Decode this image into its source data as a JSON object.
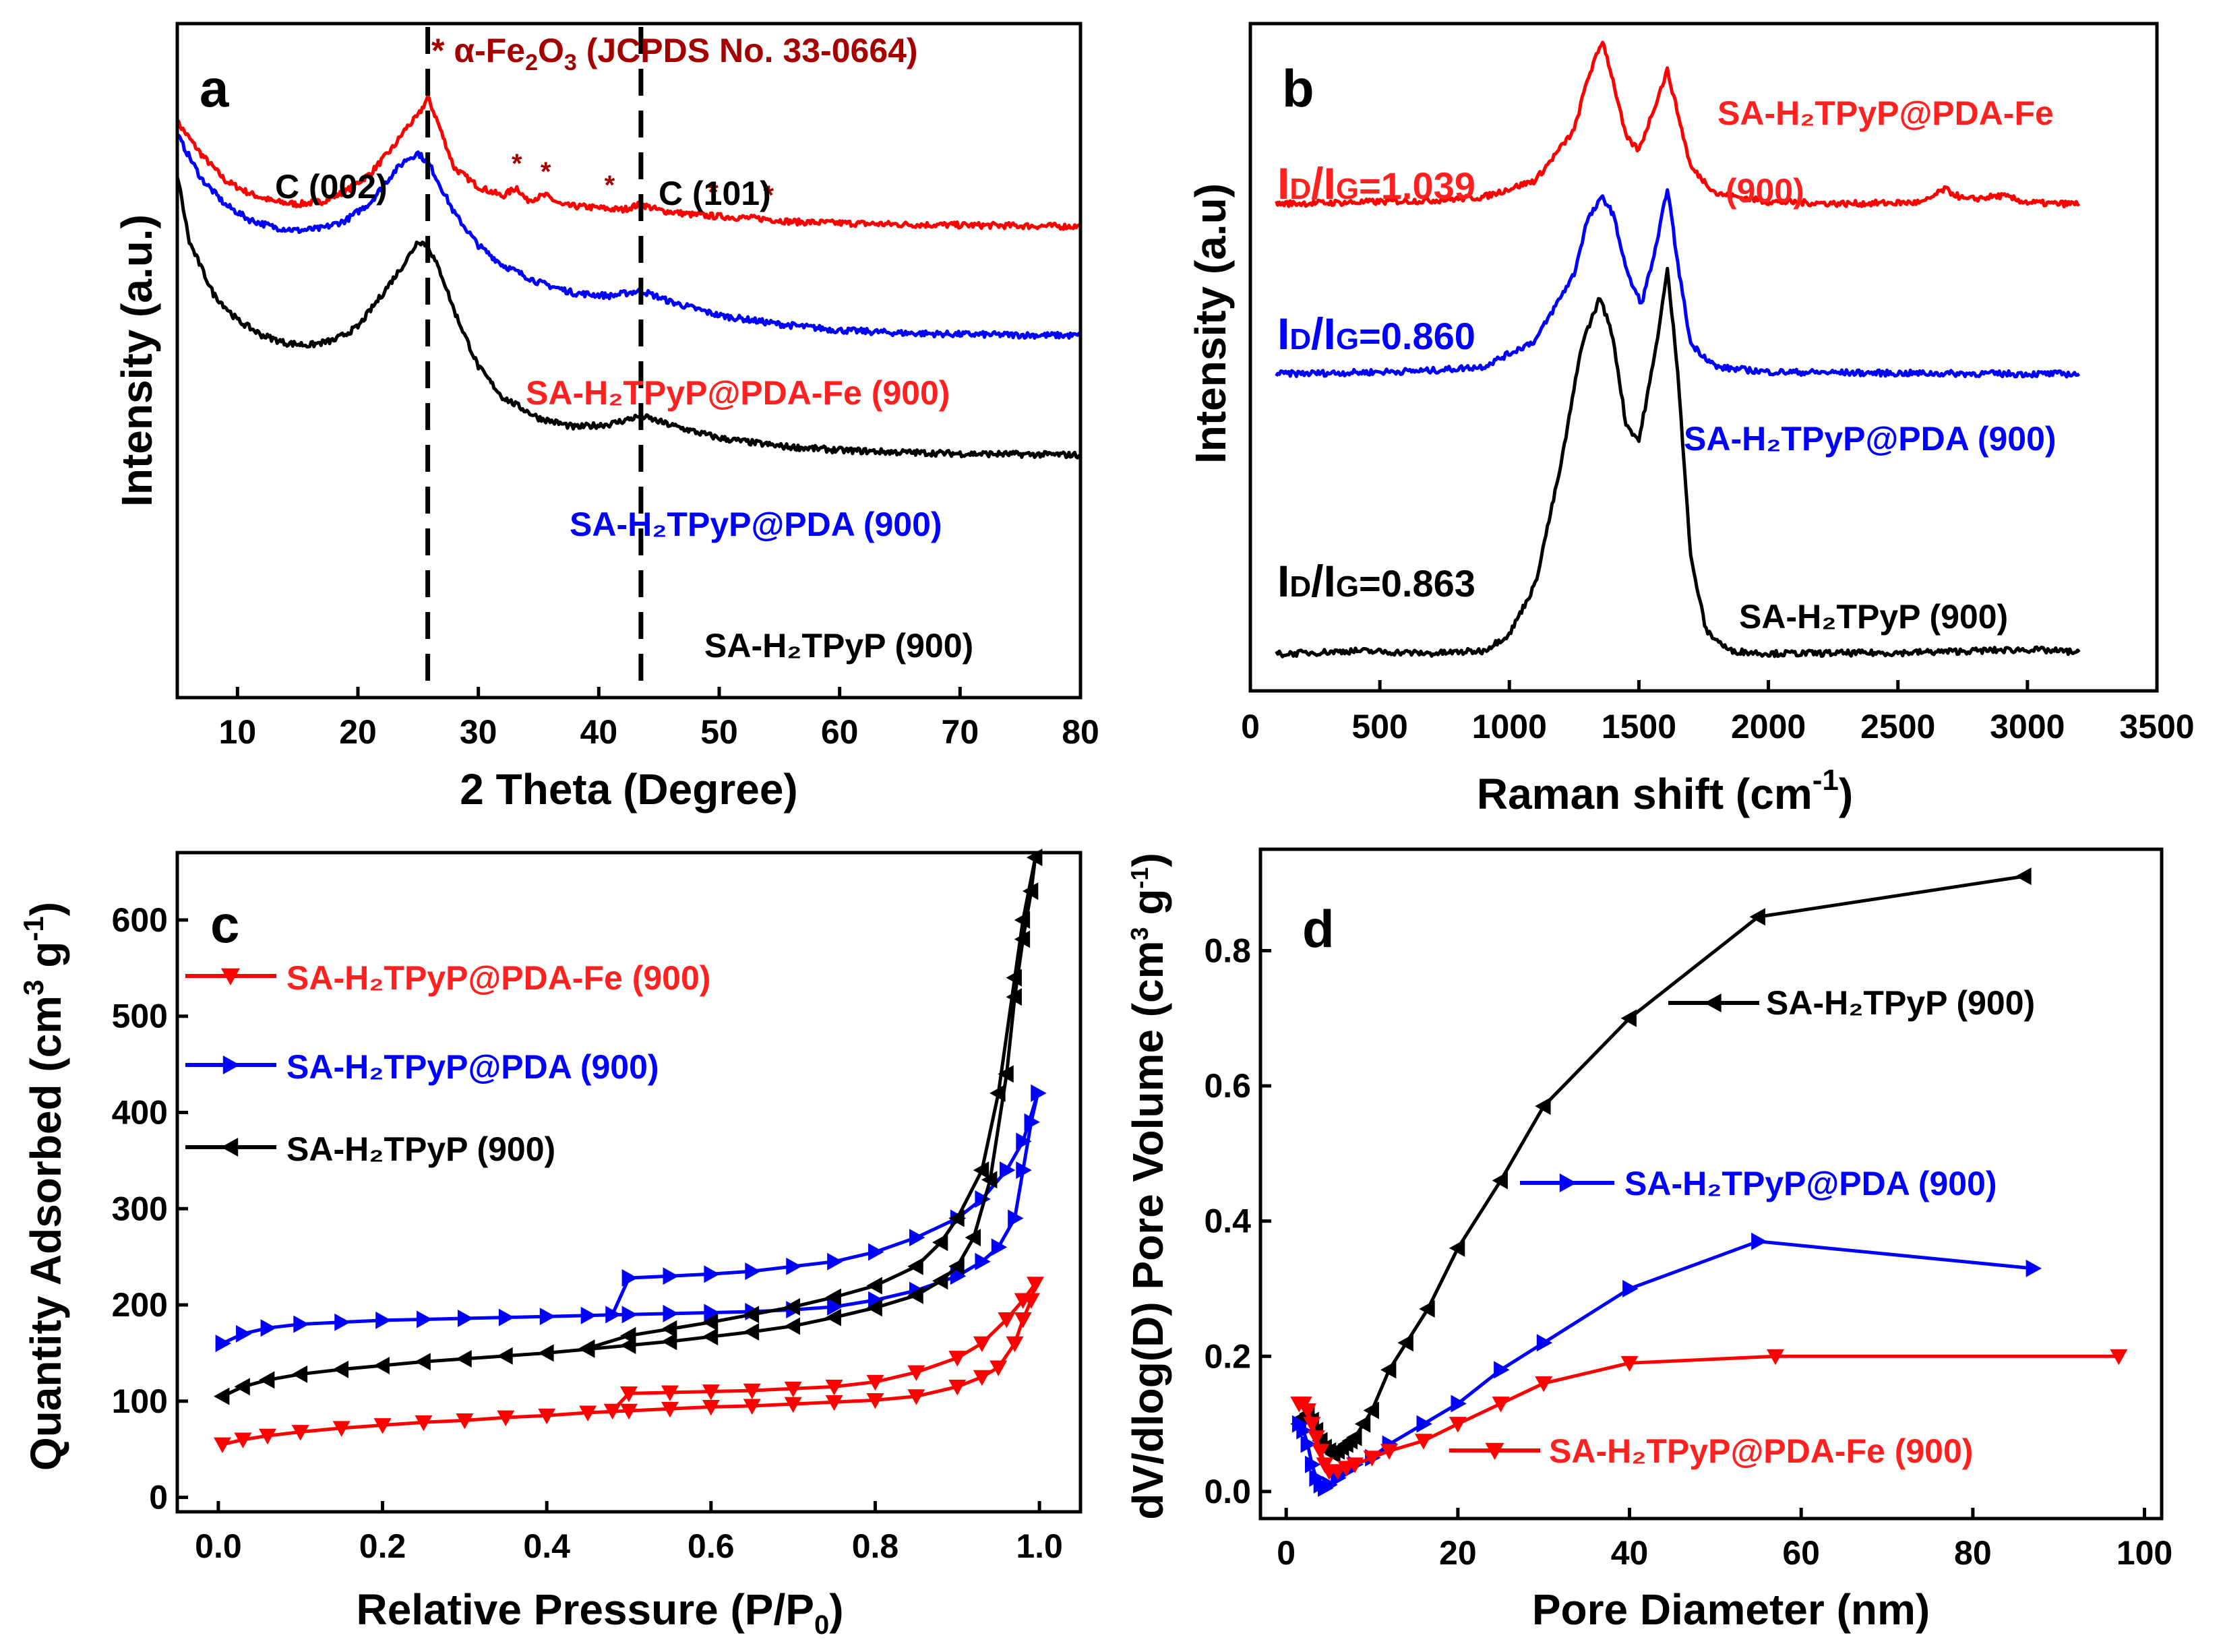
{
  "chart_data": [
    {
      "panel": "a",
      "type": "line",
      "xlabel": "2 Theta (Degree)",
      "ylabel": "Intensity (a.u.)",
      "xlim": [
        5,
        80
      ],
      "ylim": [
        0,
        100
      ],
      "xticks": [
        10,
        20,
        30,
        40,
        50,
        60,
        70,
        80
      ],
      "yticks_visible": false,
      "title_note": "α-Fe2O3 (JCPDS No. 33-0664)",
      "title_note_parts": {
        "star": "* α-Fe",
        "sub1": "2",
        "mid": "O",
        "sub2": "3",
        "rest": " (JCPDS No. 33-0664)"
      },
      "reference_lines": [
        {
          "x": 25.8,
          "label": "C (002)"
        },
        {
          "x": 43.5,
          "label": "C (101)"
        }
      ],
      "marker_star": "*",
      "star_positions": [
        33.2,
        35.6,
        40.9,
        49.5,
        54.1
      ],
      "series": [
        {
          "name": "SA-H2TPyP@PDA-Fe (900)",
          "label": "SA-H₂TPyP@PDA-Fe (900)",
          "color": "#ff0000",
          "x": [
            5,
            7,
            9,
            11,
            13,
            15,
            17,
            19,
            21,
            23,
            24,
            25,
            25.8,
            26.5,
            28,
            30,
            32,
            33.2,
            34,
            35.6,
            37,
            39,
            40.9,
            42,
            43.5,
            45,
            48,
            50,
            54,
            56,
            60,
            65,
            70,
            75,
            80
          ],
          "y": [
            85.4,
            80.6,
            76.7,
            74.8,
            73.6,
            73.2,
            73.6,
            75.1,
            77.7,
            81.8,
            84.5,
            86.3,
            89.0,
            86.0,
            78.6,
            75.8,
            74.4,
            75.7,
            73.8,
            74.5,
            73.0,
            72.8,
            72.5,
            72.4,
            73.2,
            72.3,
            71.6,
            71.4,
            71.0,
            70.6,
            70.4,
            70.2,
            70.1,
            70.0,
            69.9
          ]
        },
        {
          "name": "SA-H2TPyP@PDA (900)",
          "label": "SA-H₂TPyP@PDA (900)",
          "color": "#0000ff",
          "x": [
            5,
            7,
            9,
            11,
            13,
            15,
            17,
            19,
            21,
            23,
            24,
            25,
            26,
            27,
            28,
            30,
            32,
            35,
            38,
            41,
            43.5,
            46,
            50,
            55,
            60,
            65,
            70,
            75,
            80
          ],
          "y": [
            83.5,
            77.0,
            73.1,
            70.9,
            69.8,
            69.3,
            69.6,
            70.8,
            73.4,
            78.0,
            79.8,
            80.8,
            78.9,
            75.4,
            71.9,
            67.1,
            64.2,
            61.6,
            60.0,
            59.6,
            60.4,
            58.7,
            56.7,
            55.4,
            54.5,
            54.1,
            53.9,
            53.8,
            53.7
          ]
        },
        {
          "name": "SA-H2TPyP (900)",
          "label": "SA-H₂TPyP (900)",
          "color": "#000000",
          "x": [
            5,
            6,
            8,
            10,
            12,
            14,
            16,
            18,
            20,
            22,
            24,
            25,
            25.8,
            27,
            28,
            30,
            32,
            35,
            38,
            41,
            43.5,
            46,
            50,
            55,
            60,
            65,
            70,
            75,
            80
          ],
          "y": [
            77.6,
            67.6,
            59.9,
            56.0,
            53.8,
            52.6,
            52.3,
            53.0,
            55.0,
            59.8,
            64.8,
            67.8,
            67.1,
            62.5,
            57.4,
            49.1,
            44.6,
            41.5,
            40.1,
            40.6,
            41.8,
            40.4,
            38.5,
            37.3,
            36.7,
            36.4,
            36.2,
            36.1,
            36.0
          ]
        }
      ]
    },
    {
      "panel": "b",
      "type": "line",
      "xlabel": "Raman shift (cm⁻¹)",
      "xlabel_main": "Raman shift (cm",
      "xlabel_sup": "-1",
      "xlabel_close": ")",
      "ylabel": "Intensity (a.u)",
      "xlim": [
        0,
        3500
      ],
      "ylim": [
        0,
        100
      ],
      "xticks": [
        0,
        500,
        1000,
        1500,
        2000,
        2500,
        3000,
        3500
      ],
      "yticks_visible": false,
      "series": [
        {
          "name": "SA-H2TPyP@PDA-Fe",
          "label": "SA-H₂TPyP@PDA-Fe",
          "label2": "(900)",
          "color": "#ff0000",
          "ratio_label": "Iᴅ/Iɢ=1.039",
          "ratio_parts": {
            "i1": "I",
            "s1": "D",
            "slash": "/I",
            "s2": "G",
            "val": "=1.039"
          },
          "x": [
            100,
            400,
            700,
            900,
            1100,
            1250,
            1300,
            1360,
            1400,
            1450,
            1500,
            1560,
            1610,
            1660,
            1700,
            1800,
            2000,
            2300,
            2600,
            2680,
            2760,
            2900,
            3000,
            3100,
            3200
          ],
          "y": [
            73.0,
            73.2,
            73.5,
            74.0,
            76.5,
            84.0,
            91.5,
            97.5,
            91.5,
            83.0,
            81.0,
            87.5,
            93.0,
            85.0,
            78.5,
            74.5,
            73.3,
            73.0,
            73.2,
            75.2,
            73.6,
            74.2,
            73.2,
            73.0,
            73.0
          ]
        },
        {
          "name": "SA-H2TPyP@PDA (900)",
          "label": "SA-H₂TPyP@PDA (900)",
          "color": "#0000ff",
          "ratio_label": "Iᴅ/Iɢ=0.860",
          "ratio_parts": {
            "i1": "I",
            "s1": "D",
            "slash": "/I",
            "s2": "G",
            "val": "=0.860"
          },
          "x": [
            100,
            400,
            700,
            900,
            1100,
            1250,
            1300,
            1360,
            1400,
            1460,
            1510,
            1570,
            1610,
            1650,
            1700,
            1800,
            2000,
            2500,
            3000,
            3200
          ],
          "y": [
            47.5,
            47.7,
            48.0,
            48.6,
            52.5,
            62.5,
            70.5,
            74.0,
            71.5,
            62.0,
            58.0,
            67.0,
            75.5,
            64.0,
            52.0,
            48.5,
            47.8,
            47.6,
            47.5,
            47.5
          ]
        },
        {
          "name": "SA-H2TPyP (900)",
          "label": "SA-H₂TPyP (900)",
          "color": "#000000",
          "ratio_label": "Iᴅ/Iɢ=0.863",
          "ratio_parts": {
            "i1": "I",
            "s1": "D",
            "slash": "/I",
            "s2": "G",
            "val": "=0.863"
          },
          "x": [
            100,
            400,
            700,
            900,
            1000,
            1100,
            1200,
            1280,
            1350,
            1400,
            1450,
            1500,
            1560,
            1610,
            1650,
            1700,
            1760,
            1850,
            2000,
            2500,
            3000,
            3200
          ],
          "y": [
            5.5,
            6.0,
            5.6,
            6.0,
            8.5,
            16.0,
            34.0,
            52.0,
            59.0,
            53.0,
            40.0,
            37.5,
            50.0,
            63.0,
            48.0,
            20.0,
            9.0,
            6.0,
            5.6,
            5.7,
            6.2,
            5.8
          ]
        }
      ]
    },
    {
      "panel": "c",
      "type": "line",
      "xlabel": "Relative Pressure (P/P₀)",
      "xlabel_main": "Relative Pressure (P/P",
      "xlabel_sub": "0",
      "xlabel_close": ")",
      "ylabel": "Quantity Adsorbed (cm³ g⁻¹)",
      "ylabel_main": "Quantity Adsorbed (cm",
      "ylabel_sup1": "3",
      "ylabel_mid": " g",
      "ylabel_sup2": "-1",
      "ylabel_close": ")",
      "xlim": [
        -0.05,
        1.05
      ],
      "ylim": [
        -15,
        670
      ],
      "xticks": [
        0.0,
        0.2,
        0.4,
        0.6,
        0.8,
        1.0
      ],
      "yticks": [
        0,
        100,
        200,
        300,
        400,
        500,
        600
      ],
      "series": [
        {
          "name": "SA-H2TPyP@PDA-Fe (900)",
          "label": "SA-H₂TPyP@PDA-Fe (900)",
          "color": "#ff0000",
          "marker": "triangle-down",
          "x": [
            0.005,
            0.03,
            0.06,
            0.1,
            0.15,
            0.2,
            0.25,
            0.3,
            0.35,
            0.4,
            0.45,
            0.5,
            0.55,
            0.6,
            0.65,
            0.7,
            0.75,
            0.8,
            0.85,
            0.9,
            0.93,
            0.95,
            0.97,
            0.98,
            0.99,
            0.995,
            0.98,
            0.96,
            0.93,
            0.9,
            0.85,
            0.8,
            0.75,
            0.7,
            0.65,
            0.6,
            0.55,
            0.5,
            0.48
          ],
          "y": [
            55,
            60,
            64,
            68,
            72,
            75,
            78,
            80,
            83,
            85,
            88,
            90,
            92,
            94,
            95,
            97,
            99,
            101,
            105,
            115,
            125,
            135,
            160,
            185,
            205,
            222,
            205,
            185,
            160,
            145,
            130,
            120,
            115,
            113,
            111,
            110,
            109,
            108,
            90
          ]
        },
        {
          "name": "SA-H2TPyP@PDA (900)",
          "label": "SA-H₂TPyP@PDA (900)",
          "color": "#0000ff",
          "marker": "triangle-right",
          "x": [
            0.005,
            0.03,
            0.06,
            0.1,
            0.15,
            0.2,
            0.25,
            0.3,
            0.35,
            0.4,
            0.45,
            0.5,
            0.55,
            0.6,
            0.65,
            0.7,
            0.75,
            0.8,
            0.85,
            0.9,
            0.93,
            0.95,
            0.97,
            0.98,
            0.99,
            0.998,
            0.98,
            0.96,
            0.93,
            0.9,
            0.85,
            0.8,
            0.75,
            0.7,
            0.65,
            0.6,
            0.55,
            0.5,
            0.48
          ],
          "y": [
            160,
            170,
            176,
            180,
            182,
            184,
            185,
            186,
            187,
            188,
            189,
            190,
            191,
            192,
            193,
            195,
            198,
            205,
            215,
            230,
            245,
            260,
            290,
            340,
            390,
            420,
            370,
            340,
            310,
            290,
            270,
            255,
            245,
            240,
            235,
            232,
            230,
            228,
            190
          ]
        },
        {
          "name": "SA-H2TPyP (900)",
          "label": "SA-H₂TPyP (900)",
          "color": "#000000",
          "marker": "triangle-left",
          "x": [
            0.005,
            0.03,
            0.06,
            0.1,
            0.15,
            0.2,
            0.25,
            0.3,
            0.35,
            0.4,
            0.45,
            0.5,
            0.55,
            0.6,
            0.65,
            0.7,
            0.75,
            0.8,
            0.85,
            0.88,
            0.9,
            0.92,
            0.94,
            0.96,
            0.97,
            0.98,
            0.99,
            0.995,
            0.98,
            0.97,
            0.95,
            0.93,
            0.9,
            0.88,
            0.85,
            0.8,
            0.75,
            0.7,
            0.65,
            0.6,
            0.55,
            0.5,
            0.45
          ],
          "y": [
            105,
            115,
            122,
            128,
            133,
            137,
            141,
            144,
            147,
            150,
            154,
            158,
            162,
            167,
            172,
            178,
            187,
            197,
            210,
            225,
            240,
            270,
            330,
            440,
            520,
            580,
            630,
            665,
            600,
            540,
            420,
            340,
            290,
            265,
            240,
            220,
            208,
            198,
            190,
            182,
            175,
            168,
            155
          ]
        }
      ]
    },
    {
      "panel": "d",
      "type": "line",
      "xlabel": "Pore Diameter (nm)",
      "ylabel": "dV/dlog(D) Pore Volume (cm³ g⁻¹)",
      "ylabel_main": "dV/dlog(D) Pore Volume (cm",
      "ylabel_sup1": "3",
      "ylabel_mid": " g",
      "ylabel_sup2": "-1",
      "ylabel_close": ")",
      "xlim": [
        -3,
        102
      ],
      "ylim": [
        -0.04,
        0.95
      ],
      "xticks": [
        0,
        20,
        40,
        60,
        80,
        100
      ],
      "yticks": [
        0.0,
        0.2,
        0.4,
        0.6,
        0.8
      ],
      "series": [
        {
          "name": "SA-H2TPyP (900)",
          "label": "SA-H₂TPyP (900)",
          "color": "#000000",
          "marker": "triangle-left",
          "x": [
            1.5,
            2,
            2.5,
            3,
            3.5,
            4,
            4.5,
            5,
            5.5,
            6,
            6.5,
            7,
            7.5,
            8,
            9,
            10,
            12,
            14,
            16.5,
            20,
            25,
            30,
            40,
            55,
            86
          ],
          "y": [
            0.1,
            0.11,
            0.115,
            0.105,
            0.09,
            0.075,
            0.065,
            0.06,
            0.055,
            0.06,
            0.065,
            0.07,
            0.075,
            0.08,
            0.1,
            0.12,
            0.18,
            0.22,
            0.27,
            0.36,
            0.46,
            0.57,
            0.7,
            0.85,
            0.91
          ]
        },
        {
          "name": "SA-H2TPyP@PDA (900)",
          "label": "SA-H₂TPyP@PDA (900)",
          "color": "#0000ff",
          "marker": "triangle-right",
          "x": [
            1.5,
            2,
            2.5,
            3,
            3.5,
            4,
            4.5,
            5,
            6,
            7,
            8,
            10,
            12,
            16,
            20,
            25,
            30,
            40,
            55,
            87
          ],
          "y": [
            0.1,
            0.09,
            0.07,
            0.04,
            0.02,
            0.01,
            0.005,
            0.01,
            0.02,
            0.03,
            0.04,
            0.05,
            0.07,
            0.1,
            0.13,
            0.18,
            0.22,
            0.3,
            0.37,
            0.33
          ]
        },
        {
          "name": "SA-H2TPyP@PDA-Fe (900)",
          "label": "SA-H₂TPyP@PDA-Fe (900)",
          "color": "#ff0000",
          "marker": "triangle-down",
          "x": [
            1.5,
            2,
            2.5,
            3,
            3.5,
            4,
            4.5,
            5,
            6,
            7,
            8,
            10,
            12,
            16,
            20,
            25,
            30,
            40,
            57,
            97
          ],
          "y": [
            0.13,
            0.13,
            0.12,
            0.1,
            0.08,
            0.06,
            0.04,
            0.03,
            0.03,
            0.035,
            0.04,
            0.05,
            0.06,
            0.075,
            0.1,
            0.13,
            0.16,
            0.19,
            0.2,
            0.2
          ]
        }
      ]
    }
  ]
}
